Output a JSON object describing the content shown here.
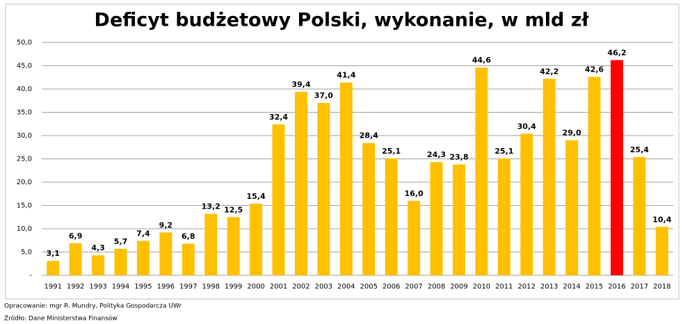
{
  "chart_data": {
    "type": "bar",
    "title": "Deficyt budżetowy Polski, wykonanie, w mld zł",
    "categories": [
      "1991",
      "1992",
      "1993",
      "1994",
      "1995",
      "1996",
      "1997",
      "1998",
      "1999",
      "2000",
      "2001",
      "2002",
      "2003",
      "2004",
      "2005",
      "2006",
      "2007",
      "2008",
      "2009",
      "2010",
      "2011",
      "2012",
      "2013",
      "2014",
      "2015",
      "2016",
      "2017",
      "2018"
    ],
    "values": [
      3.1,
      6.9,
      4.3,
      5.7,
      7.4,
      9.2,
      6.8,
      13.2,
      12.5,
      15.4,
      32.4,
      39.4,
      37.0,
      41.4,
      28.4,
      25.1,
      16.0,
      24.3,
      23.8,
      44.6,
      25.1,
      30.4,
      42.2,
      29.0,
      42.6,
      46.2,
      25.4,
      10.4
    ],
    "value_labels": [
      "3,1",
      "6,9",
      "4,3",
      "5,7",
      "7,4",
      "9,2",
      "6,8",
      "13,2",
      "12,5",
      "15,4",
      "32,4",
      "39,4",
      "37,0",
      "41,4",
      "28,4",
      "25,1",
      "16,0",
      "24,3",
      "23,8",
      "44,6",
      "25,1",
      "30,4",
      "42,2",
      "29,0",
      "42,6",
      "46,2",
      "25,4",
      "10,4"
    ],
    "colors": [
      "#FFC000",
      "#FFC000",
      "#FFC000",
      "#FFC000",
      "#FFC000",
      "#FFC000",
      "#FFC000",
      "#FFC000",
      "#FFC000",
      "#FFC000",
      "#FFC000",
      "#FFC000",
      "#FFC000",
      "#FFC000",
      "#FFC000",
      "#FFC000",
      "#FFC000",
      "#FFC000",
      "#FFC000",
      "#FFC000",
      "#FFC000",
      "#FFC000",
      "#FFC000",
      "#FFC000",
      "#FFC000",
      "#FF0000",
      "#FFC000",
      "#FFC000"
    ],
    "ylim": [
      0,
      50
    ],
    "yticks": [
      {
        "value": 0,
        "label": "-"
      },
      {
        "value": 5,
        "label": "5,0"
      },
      {
        "value": 10,
        "label": "10,0"
      },
      {
        "value": 15,
        "label": "15,0"
      },
      {
        "value": 20,
        "label": "20,0"
      },
      {
        "value": 25,
        "label": "25,0"
      },
      {
        "value": 30,
        "label": "30,0"
      },
      {
        "value": 35,
        "label": "35,0"
      },
      {
        "value": 40,
        "label": "40,0"
      },
      {
        "value": 45,
        "label": "45,0"
      },
      {
        "value": 50,
        "label": "50,0"
      }
    ],
    "grid": true,
    "notes": [
      "Opracowanie: mgr R. Mundry, Polityka Gospodarcza UWr",
      "Źródło: Dane Ministerstwa Finansów"
    ]
  }
}
